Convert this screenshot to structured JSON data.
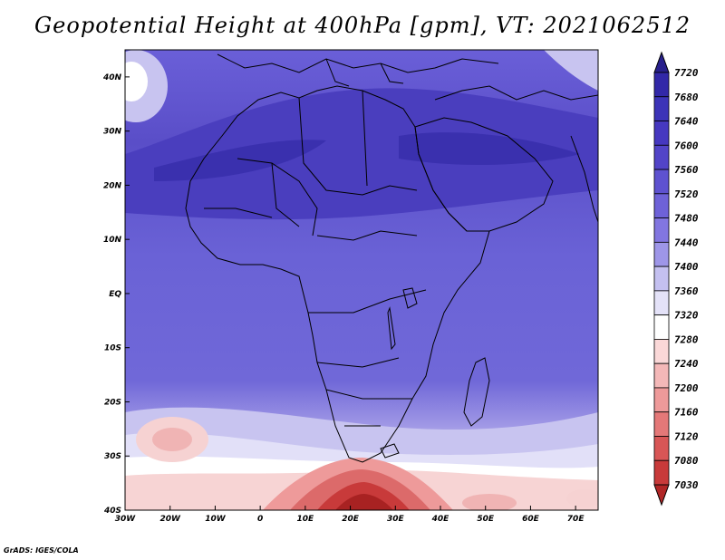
{
  "title": "Geopotential Height at 400hPa [gpm], VT: 2021062512",
  "credit": "GrADS: IGES/COLA",
  "map": {
    "region": "Africa",
    "lon_ticks": [
      "30W",
      "20W",
      "10W",
      "0",
      "10E",
      "20E",
      "30E",
      "40E",
      "50E",
      "60E",
      "70E"
    ],
    "lat_ticks": [
      "40N",
      "30N",
      "20N",
      "10N",
      "EQ",
      "10S",
      "20S",
      "30S",
      "40S"
    ],
    "lon_range": [
      -30,
      75
    ],
    "lat_range": [
      -40,
      45
    ]
  },
  "colorbar": {
    "labels": [
      "7720",
      "7680",
      "7640",
      "7600",
      "7560",
      "7520",
      "7480",
      "7440",
      "7400",
      "7360",
      "7320",
      "7280",
      "7240",
      "7200",
      "7160",
      "7120",
      "7080",
      "7030"
    ],
    "colors": [
      "#28208c",
      "#3228a8",
      "#3c34b8",
      "#4638c0",
      "#5244c8",
      "#5e52d0",
      "#6e62d8",
      "#8276e0",
      "#9e96e8",
      "#c4c0f0",
      "#e4e2f8",
      "#ffffff",
      "#fad8d8",
      "#f4b8b8",
      "#ee9a9a",
      "#e47878",
      "#d85656",
      "#c83a3a",
      "#b02626"
    ]
  }
}
